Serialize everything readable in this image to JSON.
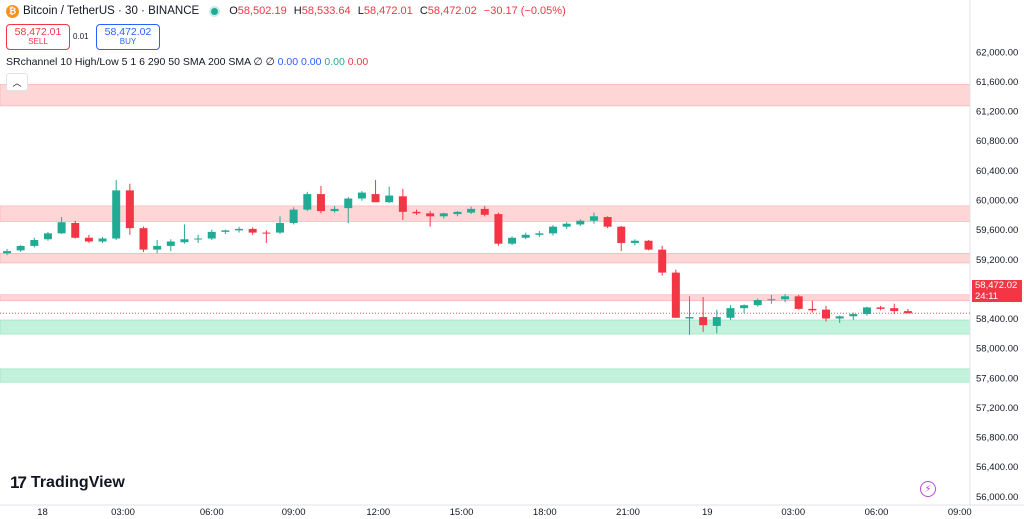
{
  "header": {
    "coin_glyph": "₿",
    "symbol": "Bitcoin / TetherUS · 30 · BINANCE",
    "o_label": "O",
    "o": "58,502.19",
    "h_label": "H",
    "h": "58,533.64",
    "l_label": "L",
    "l": "58,472.01",
    "c_label": "C",
    "c": "58,472.02",
    "change": "−30.17 (−0.05%)"
  },
  "trade": {
    "sell_price": "58,472.01",
    "sell_label": "SELL",
    "spread": "0.01",
    "buy_price": "58,472.02",
    "buy_label": "BUY"
  },
  "indicator": {
    "name": "SRchannel 10 High/Low 5 1 6 290 50 SMA 200 SMA",
    "v1": "∅",
    "v2": "∅",
    "v3": "0.00",
    "v4": "0.00",
    "v5": "0.00",
    "v6": "0.00"
  },
  "collapse_glyph": "︿",
  "last_price": {
    "value": "58,472.02",
    "countdown": "24:11"
  },
  "brand": {
    "mark": "17",
    "name": "TradingView"
  },
  "colors": {
    "up": "#22ab94",
    "down": "#f23645",
    "res_zone": "#ffd6d6",
    "sup_zone": "#c2f2db"
  },
  "chart_data": {
    "type": "candlestick",
    "title": "Bitcoin / TetherUS · 30 · BINANCE",
    "ylim": [
      55950,
      62700
    ],
    "y_ticks": [
      "56,000.00",
      "56,400.00",
      "56,800.00",
      "57,200.00",
      "57,600.00",
      "58,000.00",
      "58,400.00",
      "58,800.00",
      "59,200.00",
      "59,600.00",
      "60,000.00",
      "60,400.00",
      "60,800.00",
      "61,200.00",
      "61,600.00",
      "62,000.00"
    ],
    "x_ticks": [
      "18",
      "03:00",
      "06:00",
      "09:00",
      "12:00",
      "15:00",
      "18:00",
      "21:00",
      "19",
      "03:00",
      "06:00",
      "09:00"
    ],
    "zones": [
      {
        "kind": "resistance",
        "from": 61270,
        "to": 61560
      },
      {
        "kind": "resistance",
        "from": 59710,
        "to": 59920
      },
      {
        "kind": "resistance",
        "from": 59150,
        "to": 59280
      },
      {
        "kind": "resistance",
        "from": 58640,
        "to": 58720
      },
      {
        "kind": "support",
        "from": 58190,
        "to": 58380
      },
      {
        "kind": "support",
        "from": 57540,
        "to": 57720
      }
    ],
    "last_price": 58472.02,
    "candles": [
      {
        "o": 59280,
        "h": 59340,
        "l": 59260,
        "c": 59310
      },
      {
        "o": 59320,
        "h": 59390,
        "l": 59300,
        "c": 59380
      },
      {
        "o": 59380,
        "h": 59490,
        "l": 59360,
        "c": 59460
      },
      {
        "o": 59470,
        "h": 59570,
        "l": 59450,
        "c": 59550
      },
      {
        "o": 59550,
        "h": 59770,
        "l": 59540,
        "c": 59700
      },
      {
        "o": 59690,
        "h": 59720,
        "l": 59480,
        "c": 59490
      },
      {
        "o": 59490,
        "h": 59530,
        "l": 59420,
        "c": 59440
      },
      {
        "o": 59440,
        "h": 59500,
        "l": 59420,
        "c": 59480
      },
      {
        "o": 59480,
        "h": 60270,
        "l": 59460,
        "c": 60130
      },
      {
        "o": 60130,
        "h": 60220,
        "l": 59530,
        "c": 59620
      },
      {
        "o": 59620,
        "h": 59640,
        "l": 59300,
        "c": 59330
      },
      {
        "o": 59330,
        "h": 59460,
        "l": 59280,
        "c": 59380
      },
      {
        "o": 59380,
        "h": 59470,
        "l": 59310,
        "c": 59440
      },
      {
        "o": 59430,
        "h": 59670,
        "l": 59410,
        "c": 59470
      },
      {
        "o": 59470,
        "h": 59530,
        "l": 59420,
        "c": 59480
      },
      {
        "o": 59480,
        "h": 59600,
        "l": 59460,
        "c": 59570
      },
      {
        "o": 59570,
        "h": 59600,
        "l": 59540,
        "c": 59590
      },
      {
        "o": 59590,
        "h": 59640,
        "l": 59560,
        "c": 59610
      },
      {
        "o": 59610,
        "h": 59630,
        "l": 59530,
        "c": 59560
      },
      {
        "o": 59560,
        "h": 59590,
        "l": 59420,
        "c": 59550
      },
      {
        "o": 59560,
        "h": 59780,
        "l": 59540,
        "c": 59690
      },
      {
        "o": 59690,
        "h": 59900,
        "l": 59670,
        "c": 59870
      },
      {
        "o": 59870,
        "h": 60110,
        "l": 59850,
        "c": 60080
      },
      {
        "o": 60080,
        "h": 60190,
        "l": 59820,
        "c": 59850
      },
      {
        "o": 59850,
        "h": 59920,
        "l": 59830,
        "c": 59880
      },
      {
        "o": 59890,
        "h": 60040,
        "l": 59690,
        "c": 60020
      },
      {
        "o": 60020,
        "h": 60120,
        "l": 59990,
        "c": 60100
      },
      {
        "o": 60080,
        "h": 60270,
        "l": 59980,
        "c": 59970
      },
      {
        "o": 59970,
        "h": 60180,
        "l": 59960,
        "c": 60060
      },
      {
        "o": 60050,
        "h": 60150,
        "l": 59730,
        "c": 59840
      },
      {
        "o": 59840,
        "h": 59870,
        "l": 59800,
        "c": 59820
      },
      {
        "o": 59820,
        "h": 59850,
        "l": 59640,
        "c": 59780
      },
      {
        "o": 59780,
        "h": 59830,
        "l": 59750,
        "c": 59820
      },
      {
        "o": 59810,
        "h": 59850,
        "l": 59780,
        "c": 59840
      },
      {
        "o": 59830,
        "h": 59910,
        "l": 59810,
        "c": 59880
      },
      {
        "o": 59880,
        "h": 59920,
        "l": 59780,
        "c": 59800
      },
      {
        "o": 59810,
        "h": 59830,
        "l": 59380,
        "c": 59410
      },
      {
        "o": 59410,
        "h": 59510,
        "l": 59390,
        "c": 59490
      },
      {
        "o": 59490,
        "h": 59560,
        "l": 59470,
        "c": 59530
      },
      {
        "o": 59530,
        "h": 59580,
        "l": 59500,
        "c": 59550
      },
      {
        "o": 59550,
        "h": 59660,
        "l": 59520,
        "c": 59640
      },
      {
        "o": 59640,
        "h": 59700,
        "l": 59610,
        "c": 59680
      },
      {
        "o": 59670,
        "h": 59740,
        "l": 59650,
        "c": 59720
      },
      {
        "o": 59720,
        "h": 59830,
        "l": 59680,
        "c": 59780
      },
      {
        "o": 59770,
        "h": 59780,
        "l": 59620,
        "c": 59640
      },
      {
        "o": 59640,
        "h": 59650,
        "l": 59310,
        "c": 59420
      },
      {
        "o": 59420,
        "h": 59470,
        "l": 59390,
        "c": 59450
      },
      {
        "o": 59450,
        "h": 59460,
        "l": 59320,
        "c": 59330
      },
      {
        "o": 59330,
        "h": 59380,
        "l": 58980,
        "c": 59020
      },
      {
        "o": 59020,
        "h": 59060,
        "l": 58410,
        "c": 58410
      },
      {
        "o": 58400,
        "h": 58700,
        "l": 58180,
        "c": 58420
      },
      {
        "o": 58420,
        "h": 58690,
        "l": 58220,
        "c": 58310
      },
      {
        "o": 58300,
        "h": 58520,
        "l": 58200,
        "c": 58420
      },
      {
        "o": 58410,
        "h": 58580,
        "l": 58380,
        "c": 58540
      },
      {
        "o": 58540,
        "h": 58590,
        "l": 58470,
        "c": 58580
      },
      {
        "o": 58580,
        "h": 58670,
        "l": 58560,
        "c": 58650
      },
      {
        "o": 58650,
        "h": 58720,
        "l": 58600,
        "c": 58660
      },
      {
        "o": 58660,
        "h": 58730,
        "l": 58620,
        "c": 58700
      },
      {
        "o": 58700,
        "h": 58720,
        "l": 58520,
        "c": 58530
      },
      {
        "o": 58530,
        "h": 58640,
        "l": 58480,
        "c": 58510
      },
      {
        "o": 58520,
        "h": 58570,
        "l": 58360,
        "c": 58400
      },
      {
        "o": 58400,
        "h": 58440,
        "l": 58340,
        "c": 58430
      },
      {
        "o": 58430,
        "h": 58480,
        "l": 58380,
        "c": 58460
      },
      {
        "o": 58460,
        "h": 58560,
        "l": 58440,
        "c": 58550
      },
      {
        "o": 58550,
        "h": 58570,
        "l": 58510,
        "c": 58530
      },
      {
        "o": 58540,
        "h": 58600,
        "l": 58460,
        "c": 58500
      },
      {
        "o": 58500,
        "h": 58530,
        "l": 58470,
        "c": 58470
      }
    ]
  }
}
